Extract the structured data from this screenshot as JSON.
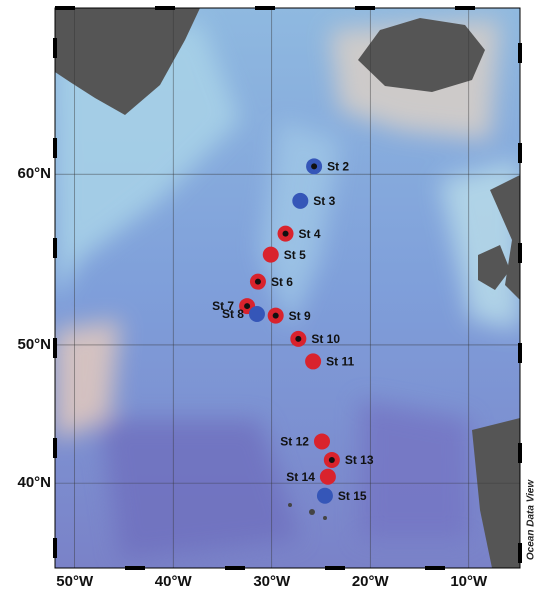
{
  "map": {
    "credit": "Ocean Data View",
    "lon_range": [
      -52,
      -4.8
    ],
    "lat_range": [
      33,
      67.5
    ],
    "lon_ticks": [
      {
        "value": -50,
        "label": "50°W"
      },
      {
        "value": -40,
        "label": "40°W"
      },
      {
        "value": -30,
        "label": "30°W"
      },
      {
        "value": -20,
        "label": "20°W"
      },
      {
        "value": -10,
        "label": "10°W"
      }
    ],
    "lat_ticks": [
      {
        "value": 60,
        "label": "60°N"
      },
      {
        "value": 50,
        "label": "50°N"
      },
      {
        "value": 40,
        "label": "40°N"
      }
    ],
    "grid": true,
    "stations": [
      {
        "name": "St 2",
        "lon": -25.7,
        "lat": 60.4,
        "color": "#3556b8",
        "center_dot": true,
        "label_side": "right"
      },
      {
        "name": "St 3",
        "lon": -27.1,
        "lat": 58.6,
        "color": "#3556b8",
        "center_dot": false,
        "label_side": "right"
      },
      {
        "name": "St 4",
        "lon": -28.6,
        "lat": 56.8,
        "color": "#d9232d",
        "center_dot": true,
        "label_side": "right"
      },
      {
        "name": "St 5",
        "lon": -30.1,
        "lat": 55.6,
        "color": "#d9232d",
        "center_dot": false,
        "label_side": "right"
      },
      {
        "name": "St 6",
        "lon": -31.4,
        "lat": 54.0,
        "color": "#d9232d",
        "center_dot": true,
        "label_side": "right"
      },
      {
        "name": "St 7",
        "lon": -32.5,
        "lat": 52.5,
        "color": "#d9232d",
        "center_dot": true,
        "label_side": "left"
      },
      {
        "name": "St 8",
        "lon": -31.5,
        "lat": 52.0,
        "color": "#3556b8",
        "center_dot": false,
        "label_side": "left"
      },
      {
        "name": "St 9",
        "lon": -29.6,
        "lat": 51.9,
        "color": "#d9232d",
        "center_dot": true,
        "label_side": "right"
      },
      {
        "name": "St 10",
        "lon": -27.3,
        "lat": 50.4,
        "color": "#d9232d",
        "center_dot": true,
        "label_side": "right"
      },
      {
        "name": "St 11",
        "lon": -25.8,
        "lat": 48.9,
        "color": "#d9232d",
        "center_dot": false,
        "label_side": "right"
      },
      {
        "name": "St 12",
        "lon": -24.9,
        "lat": 43.2,
        "color": "#d9232d",
        "center_dot": false,
        "label_side": "left"
      },
      {
        "name": "St 13",
        "lon": -23.9,
        "lat": 41.8,
        "color": "#d9232d",
        "center_dot": true,
        "label_side": "right"
      },
      {
        "name": "St 14",
        "lon": -24.3,
        "lat": 40.5,
        "color": "#d9232d",
        "center_dot": false,
        "label_side": "left"
      },
      {
        "name": "St 15",
        "lon": -24.6,
        "lat": 39.0,
        "color": "#3556b8",
        "center_dot": false,
        "label_side": "right"
      }
    ]
  }
}
